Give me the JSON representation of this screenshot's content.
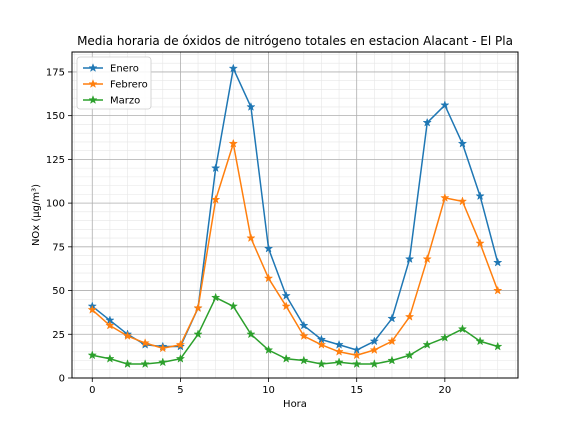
{
  "chart_data": {
    "type": "line",
    "title": "Media horaria de óxidos de nitrógeno totales en estacion Alacant - El Pla",
    "xlabel": "Hora",
    "ylabel": "NOx (µg/m³)",
    "xlim": [
      -1.15,
      24.15
    ],
    "ylim": [
      0,
      186.4
    ],
    "xticks": [
      0,
      5,
      10,
      15,
      20
    ],
    "yticks": [
      0,
      25,
      50,
      75,
      100,
      125,
      150,
      175
    ],
    "grid": "major and minor",
    "legend_position": "top-left",
    "marker": "star",
    "x": [
      0,
      1,
      2,
      3,
      4,
      5,
      6,
      7,
      8,
      9,
      10,
      11,
      12,
      13,
      14,
      15,
      16,
      17,
      18,
      19,
      20,
      21,
      22,
      23
    ],
    "series": [
      {
        "name": "Enero",
        "color": "#1f77b4",
        "values": [
          41,
          33,
          25,
          19,
          18,
          18,
          40,
          120,
          177,
          155,
          74,
          47,
          30,
          22,
          19,
          16,
          21,
          34,
          68,
          146,
          156,
          134,
          104,
          66
        ]
      },
      {
        "name": "Febrero",
        "color": "#ff7f0e",
        "values": [
          39,
          30,
          24,
          20,
          17,
          19,
          40,
          102,
          134,
          80,
          57,
          41,
          24,
          19,
          15,
          13,
          16,
          21,
          35,
          68,
          103,
          101,
          77,
          50
        ]
      },
      {
        "name": "Marzo",
        "color": "#2ca02c",
        "values": [
          13,
          11,
          8,
          8,
          9,
          11,
          25,
          46,
          41,
          25,
          16,
          11,
          10,
          8,
          9,
          8,
          8,
          10,
          13,
          19,
          23,
          28,
          21,
          18
        ]
      }
    ]
  }
}
